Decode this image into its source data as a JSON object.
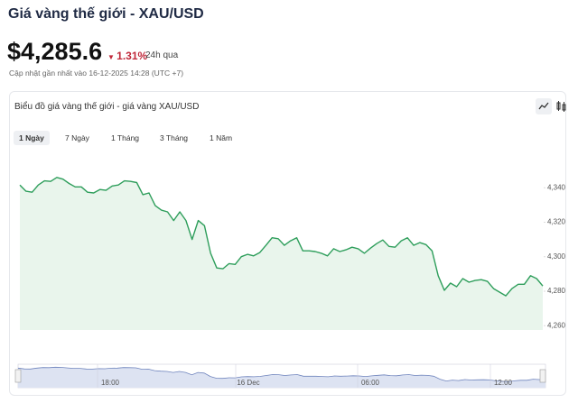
{
  "header": {
    "title": "Giá vàng thế giới - XAU/USD",
    "price": "$4,285.6",
    "change": "1.31%",
    "period": "24h qua",
    "updated": "Cập nhật gần nhất vào 16-12-2025 14:28 (UTC +7)"
  },
  "card": {
    "title": "Biểu đồ giá vàng thế giới - giá vàng XAU/USD",
    "tabs": [
      "1 Ngày",
      "7 Ngày",
      "1 Tháng",
      "3 Tháng",
      "1 Năm"
    ]
  },
  "navigator": {
    "labels": [
      "18:00",
      "16 Dec",
      "06:00",
      "12:00"
    ]
  },
  "chart_data": {
    "type": "area",
    "color": "#2e9e5b",
    "fill": "#e9f5ec",
    "values": [
      4341.6,
      4338,
      4337.4,
      4341.6,
      4344,
      4343.7,
      4346,
      4345,
      4342.5,
      4340.5,
      4340.5,
      4337.4,
      4337,
      4339,
      4338.5,
      4341,
      4341.6,
      4344,
      4343.7,
      4343,
      4336,
      4337,
      4329.6,
      4327,
      4326,
      4321,
      4326,
      4321,
      4310,
      4321,
      4318,
      4302,
      4293.5,
      4293,
      4296,
      4295.5,
      4300,
      4301.4,
      4300.5,
      4302.4,
      4306.6,
      4311,
      4310.4,
      4306.6,
      4309.2,
      4311,
      4303.4,
      4303.4,
      4303,
      4302,
      4300.5,
      4304.6,
      4303,
      4304,
      4305.5,
      4304.6,
      4302,
      4305,
      4307.6,
      4309.7,
      4306,
      4305.5,
      4309.2,
      4311,
      4306.6,
      4308.2,
      4307,
      4303.4,
      4289,
      4280.5,
      4284.7,
      4282.6,
      4287.3,
      4285.2,
      4286.2,
      4286.7,
      4285.7,
      4281.5,
      4279.4,
      4277.3,
      4281.5,
      4284,
      4284,
      4289,
      4287.3,
      4283
    ],
    "ylim": [
      4257.5,
      4360
    ],
    "yticks": [
      {
        "value": 4260,
        "label": "4,260"
      },
      {
        "value": 4280,
        "label": "4,280"
      },
      {
        "value": 4300,
        "label": "4,300"
      },
      {
        "value": 4320,
        "label": "4,320"
      },
      {
        "value": 4340,
        "label": "4,340"
      }
    ]
  }
}
